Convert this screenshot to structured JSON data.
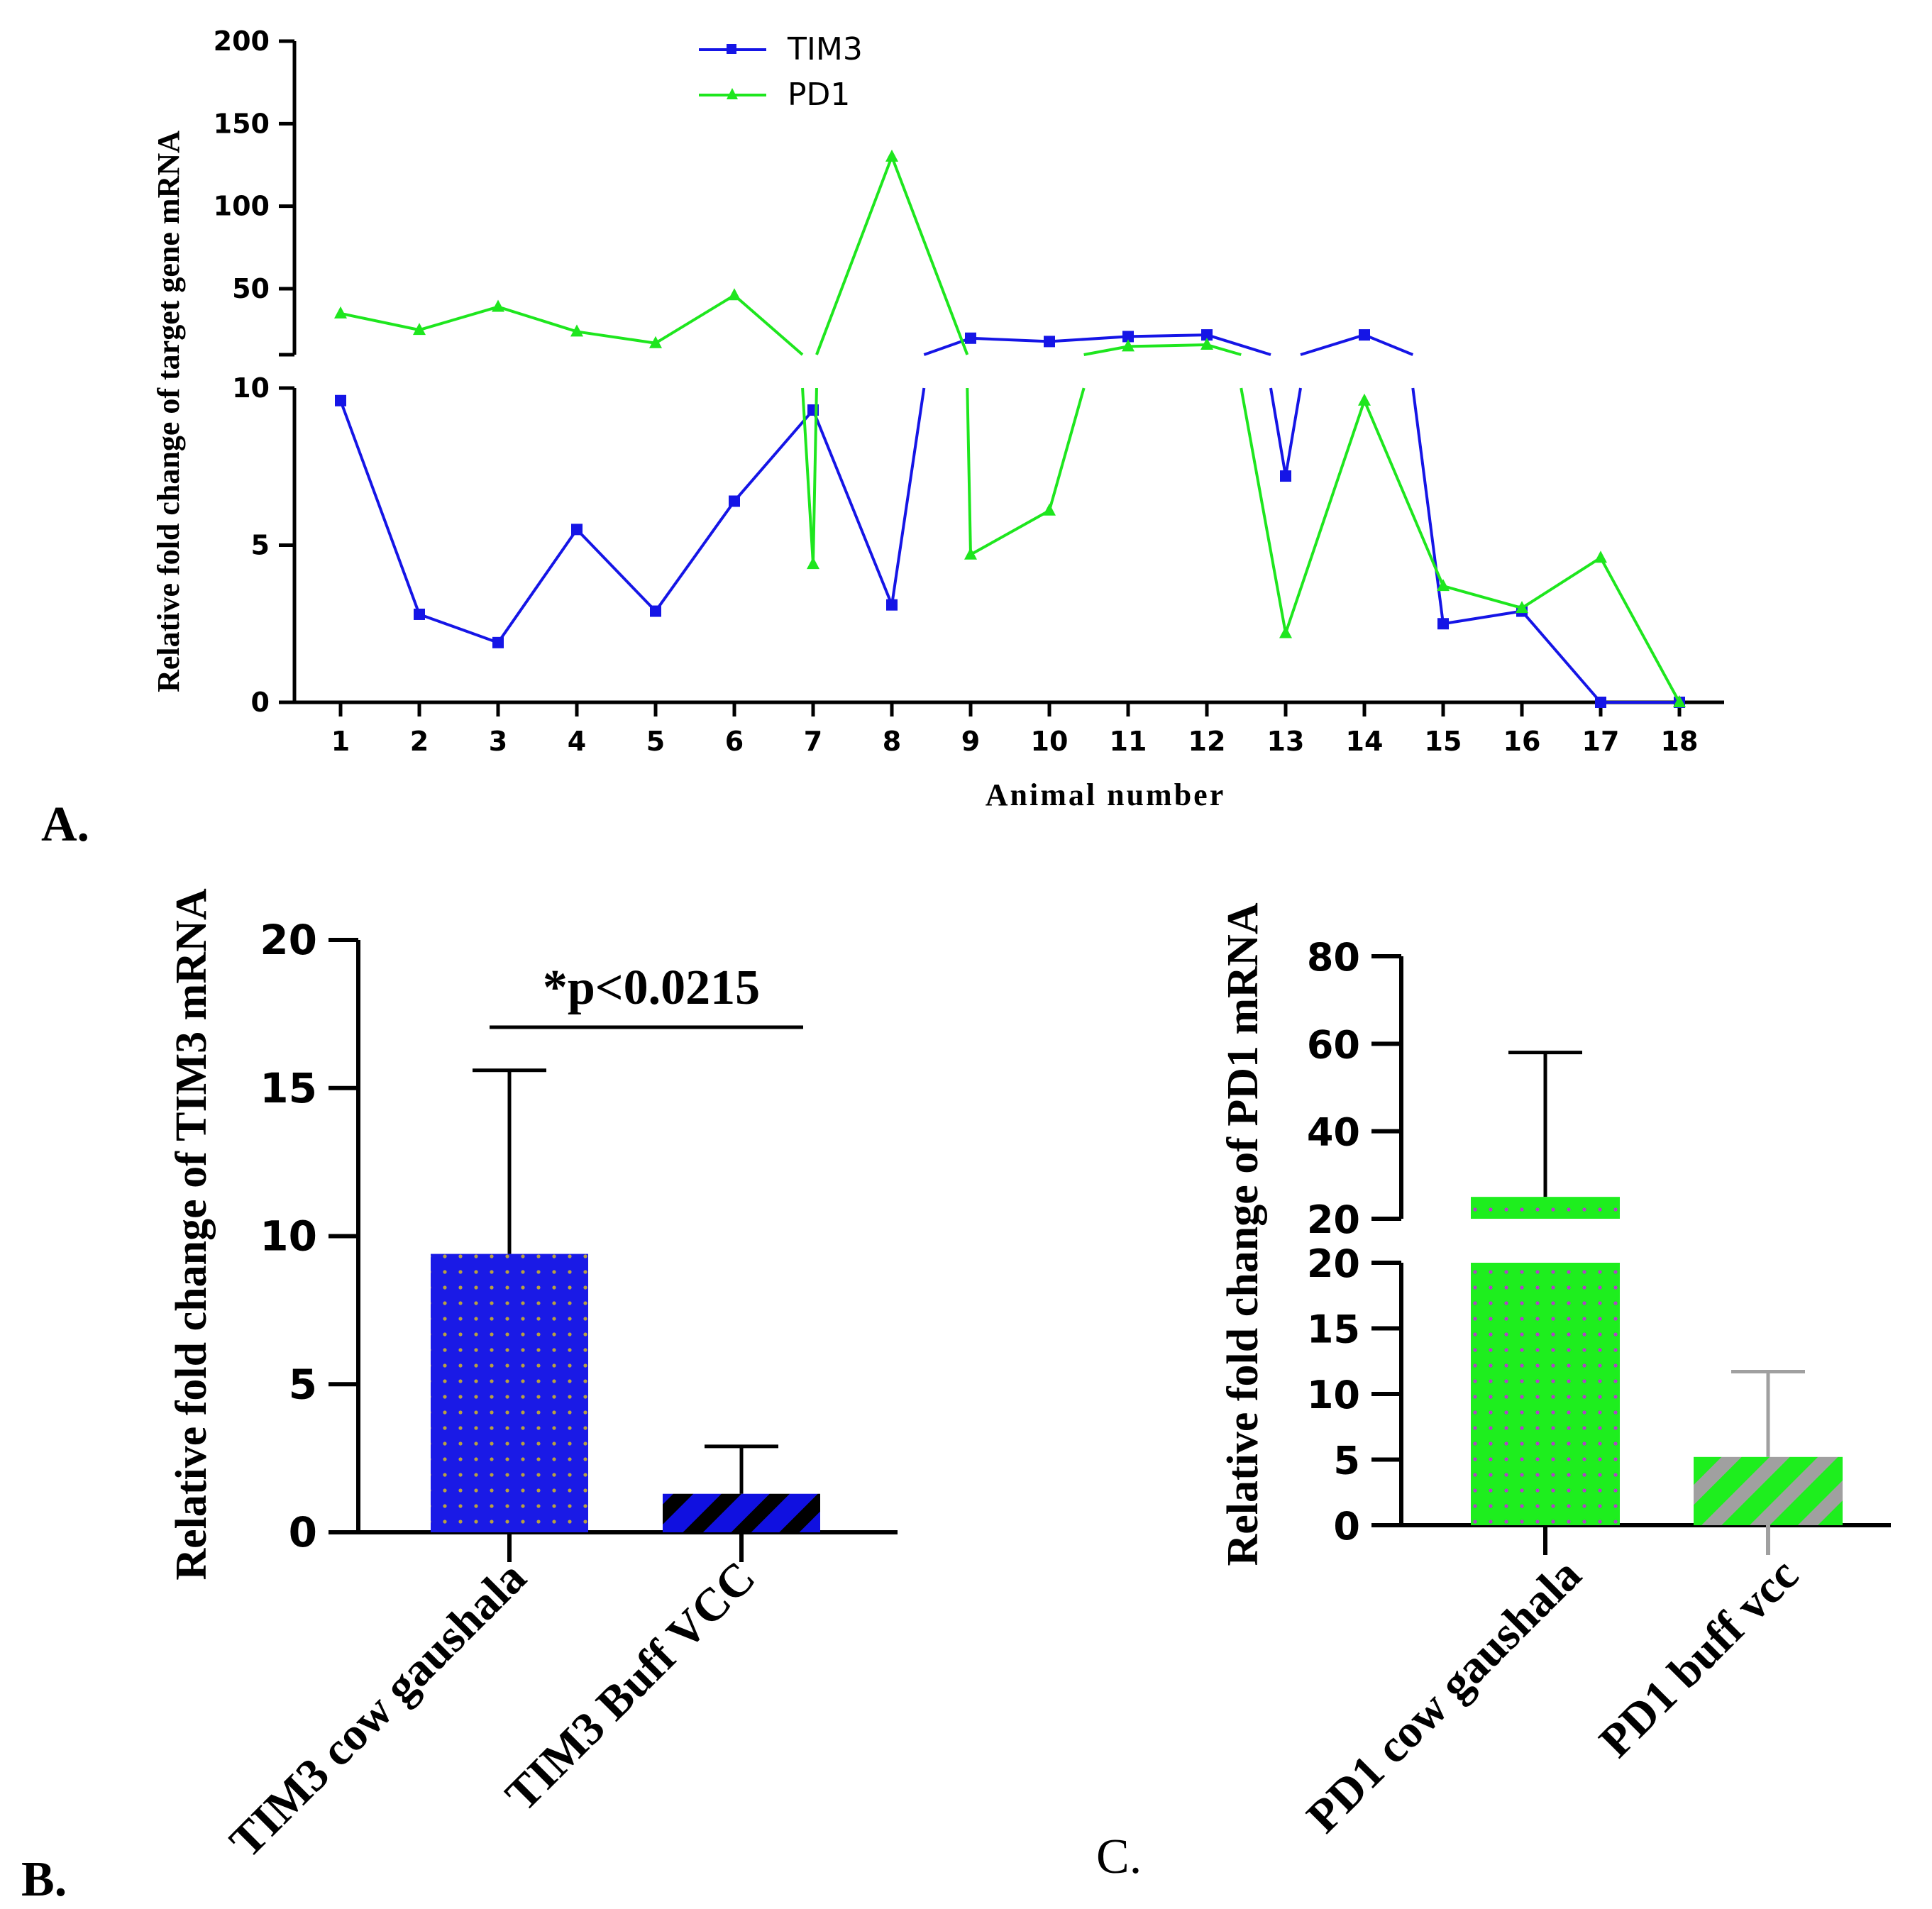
{
  "chart_data": [
    {
      "panel": "A.",
      "type": "line",
      "xlabel": "Animal number",
      "ylabel": "Relative fold change of target gene mRNA",
      "categories": [
        "1",
        "2",
        "3",
        "4",
        "5",
        "6",
        "7",
        "8",
        "9",
        "10",
        "11",
        "12",
        "13",
        "14",
        "15",
        "16",
        "17",
        "18"
      ],
      "y_axis_break": {
        "lower_segment": [
          0,
          10
        ],
        "upper_segment": [
          10,
          200
        ]
      },
      "y_ticks_lower": [
        "0",
        "5",
        "10"
      ],
      "y_ticks_upper": [
        "50",
        "100",
        "150",
        "200"
      ],
      "legend": [
        "TIM3",
        "PD1"
      ],
      "legend_position": "top-center",
      "series": [
        {
          "name": "TIM3",
          "color": "#1515e6",
          "marker": "square",
          "values": [
            9.6,
            2.8,
            1.9,
            5.5,
            2.9,
            6.4,
            9.3,
            3.1,
            20,
            18,
            21,
            22,
            7.2,
            22,
            2.5,
            2.9,
            0,
            0
          ]
        },
        {
          "name": "PD1",
          "color": "#1ee61e",
          "marker": "triangle",
          "values": [
            35,
            25,
            39,
            24,
            17,
            46,
            4.4,
            130,
            4.7,
            6.1,
            15,
            16,
            2.2,
            9.6,
            3.7,
            3.0,
            4.6,
            0
          ]
        }
      ]
    },
    {
      "panel": "B.",
      "type": "bar",
      "ylabel": "Relative fold change of TIM3 mRNA",
      "categories": [
        "TIM3 cow gaushala",
        "TIM3 Buff VCC"
      ],
      "values": [
        9.4,
        1.3
      ],
      "error_upper": [
        15.6,
        2.9
      ],
      "ylim": [
        0,
        20
      ],
      "y_ticks": [
        "0",
        "5",
        "10",
        "15",
        "20"
      ],
      "annotation": "*p<0.0215",
      "colors": [
        "#1a1ae6",
        "#1010e0"
      ]
    },
    {
      "panel": "C.",
      "type": "bar",
      "ylabel": "Relative fold change of PD1 mRNA",
      "categories": [
        "PD1 cow gaushala",
        "PD1 buff vcc"
      ],
      "values": [
        25,
        5.2
      ],
      "error_upper": [
        58,
        11.7
      ],
      "y_axis_break": {
        "lower_segment": [
          0,
          20
        ],
        "upper_segment": [
          20,
          80
        ]
      },
      "y_ticks_lower": [
        "0",
        "5",
        "10",
        "15",
        "20"
      ],
      "y_ticks_upper": [
        "20",
        "40",
        "60",
        "80"
      ],
      "colors": [
        "#1eee1e",
        "#1eee1e"
      ]
    }
  ]
}
